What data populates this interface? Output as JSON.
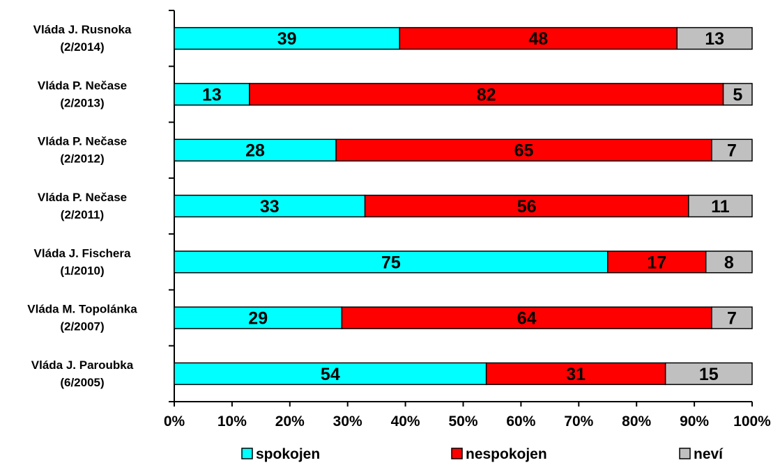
{
  "chart_data": {
    "type": "bar",
    "stacked": true,
    "orientation": "horizontal",
    "percent_axis": true,
    "xlim": [
      0,
      100
    ],
    "x_ticks": [
      "0%",
      "10%",
      "20%",
      "30%",
      "40%",
      "50%",
      "60%",
      "70%",
      "80%",
      "90%",
      "100%"
    ],
    "categories": [
      [
        "Vláda J. Rusnoka",
        "(2/2014)"
      ],
      [
        "Vláda P. Nečase",
        "(2/2013)"
      ],
      [
        "Vláda P. Nečase",
        "(2/2012)"
      ],
      [
        "Vláda P. Nečase",
        "(2/2011)"
      ],
      [
        "Vláda J. Fischera",
        "(1/2010)"
      ],
      [
        "Vláda M. Topolánka",
        "(2/2007)"
      ],
      [
        "Vláda J. Paroubka",
        "(6/2005)"
      ]
    ],
    "series": [
      {
        "name": "spokojen",
        "color": "#00ffff",
        "values": [
          39,
          13,
          28,
          33,
          75,
          29,
          54
        ]
      },
      {
        "name": "nespokojen",
        "color": "#ff0000",
        "values": [
          48,
          82,
          65,
          56,
          17,
          64,
          31
        ]
      },
      {
        "name": "neví",
        "color": "#c0c0c0",
        "values": [
          13,
          5,
          7,
          11,
          8,
          7,
          15
        ]
      }
    ],
    "grid": false,
    "legend_position": "bottom"
  }
}
